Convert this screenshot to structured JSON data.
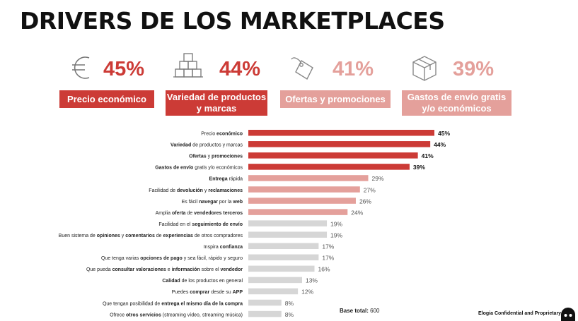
{
  "title": "DRIVERS DE LOS MARKETPLACES",
  "kpis": [
    {
      "icon": "euro-icon",
      "value": "45%",
      "label": "Precio económico",
      "color": "#cc3b36",
      "text_color": "#cc3b36"
    },
    {
      "icon": "boxes-stack-icon",
      "value": "44%",
      "label": "Variedad de productos y marcas",
      "color": "#cc3b36",
      "text_color": "#cc3b36"
    },
    {
      "icon": "price-tag-icon",
      "value": "41%",
      "label": "Ofertas y promociones",
      "color": "#e4a09b",
      "text_color": "#e4a09b"
    },
    {
      "icon": "package-box-icon",
      "value": "39%",
      "label": "Gastos de envío gratis y/o económicos",
      "color": "#e4a09b",
      "text_color": "#e4a09b"
    }
  ],
  "chart_data": {
    "type": "bar",
    "orientation": "horizontal",
    "categories": [
      [
        {
          "t": "Precio ",
          "b": false
        },
        {
          "t": "económico",
          "b": true
        }
      ],
      [
        {
          "t": "Variedad",
          "b": true
        },
        {
          "t": " de productos y marcas",
          "b": false
        }
      ],
      [
        {
          "t": "Ofertas",
          "b": true
        },
        {
          "t": " y ",
          "b": false
        },
        {
          "t": "promociones",
          "b": true
        }
      ],
      [
        {
          "t": "Gastos de envío",
          "b": true
        },
        {
          "t": " gratis y/o económicos",
          "b": false
        }
      ],
      [
        {
          "t": "Entrega",
          "b": true
        },
        {
          "t": " rápida",
          "b": false
        }
      ],
      [
        {
          "t": "Facilidad de ",
          "b": false
        },
        {
          "t": "devolución",
          "b": true
        },
        {
          "t": " y ",
          "b": false
        },
        {
          "t": "reclamaciones",
          "b": true
        }
      ],
      [
        {
          "t": "Es fácil ",
          "b": false
        },
        {
          "t": "navegar",
          "b": true
        },
        {
          "t": " por la ",
          "b": false
        },
        {
          "t": "web",
          "b": true
        }
      ],
      [
        {
          "t": "Amplia ",
          "b": false
        },
        {
          "t": "oferta",
          "b": true
        },
        {
          "t": " de ",
          "b": false
        },
        {
          "t": "vendedores terceros",
          "b": true
        }
      ],
      [
        {
          "t": "Facilidad en el ",
          "b": false
        },
        {
          "t": "seguimiento de envío",
          "b": true
        }
      ],
      [
        {
          "t": "Buen sistema de ",
          "b": false
        },
        {
          "t": "opiniones",
          "b": true
        },
        {
          "t": " y ",
          "b": false
        },
        {
          "t": "comentarios",
          "b": true
        },
        {
          "t": " de ",
          "b": false
        },
        {
          "t": "experiencias",
          "b": true
        },
        {
          "t": " de otros compradores",
          "b": false
        }
      ],
      [
        {
          "t": "Inspira ",
          "b": false
        },
        {
          "t": "confianza",
          "b": true
        }
      ],
      [
        {
          "t": "Que tenga varias ",
          "b": false
        },
        {
          "t": "opciones de pago",
          "b": true
        },
        {
          "t": " y sea fácil, rápido y seguro",
          "b": false
        }
      ],
      [
        {
          "t": "Que pueda ",
          "b": false
        },
        {
          "t": "consultar valoraciones",
          "b": true
        },
        {
          "t": " e ",
          "b": false
        },
        {
          "t": "información",
          "b": true
        },
        {
          "t": " sobre el ",
          "b": false
        },
        {
          "t": "vendedor",
          "b": true
        }
      ],
      [
        {
          "t": "Calidad",
          "b": true
        },
        {
          "t": " de los productos en general",
          "b": false
        }
      ],
      [
        {
          "t": "Puedes ",
          "b": false
        },
        {
          "t": "comprar",
          "b": true
        },
        {
          "t": " desde su ",
          "b": false
        },
        {
          "t": "APP",
          "b": true
        }
      ],
      [
        {
          "t": "Que tengan posibilidad de ",
          "b": false
        },
        {
          "t": "entrega el mismo día de la compra",
          "b": true
        }
      ],
      [
        {
          "t": "Ofrece ",
          "b": false
        },
        {
          "t": "otros servicios",
          "b": true
        },
        {
          "t": " (streaming vídeo, streaming música)",
          "b": false
        }
      ]
    ],
    "values": [
      45,
      44,
      41,
      39,
      29,
      27,
      26,
      24,
      19,
      19,
      17,
      17,
      16,
      13,
      12,
      8,
      8
    ],
    "value_suffix": "%",
    "tiers": [
      "top",
      "top",
      "top",
      "top",
      "mid",
      "mid",
      "mid",
      "mid",
      "low",
      "low",
      "low",
      "low",
      "low",
      "low",
      "low",
      "low",
      "low"
    ],
    "colors": {
      "top": "#cc3b36",
      "mid": "#e4a09b",
      "low": "#d6d6d6"
    },
    "xlim": [
      0,
      45
    ]
  },
  "base_label": "Base total:",
  "base_value": "600",
  "confidential": "Elogia Confidential and Proprietary"
}
